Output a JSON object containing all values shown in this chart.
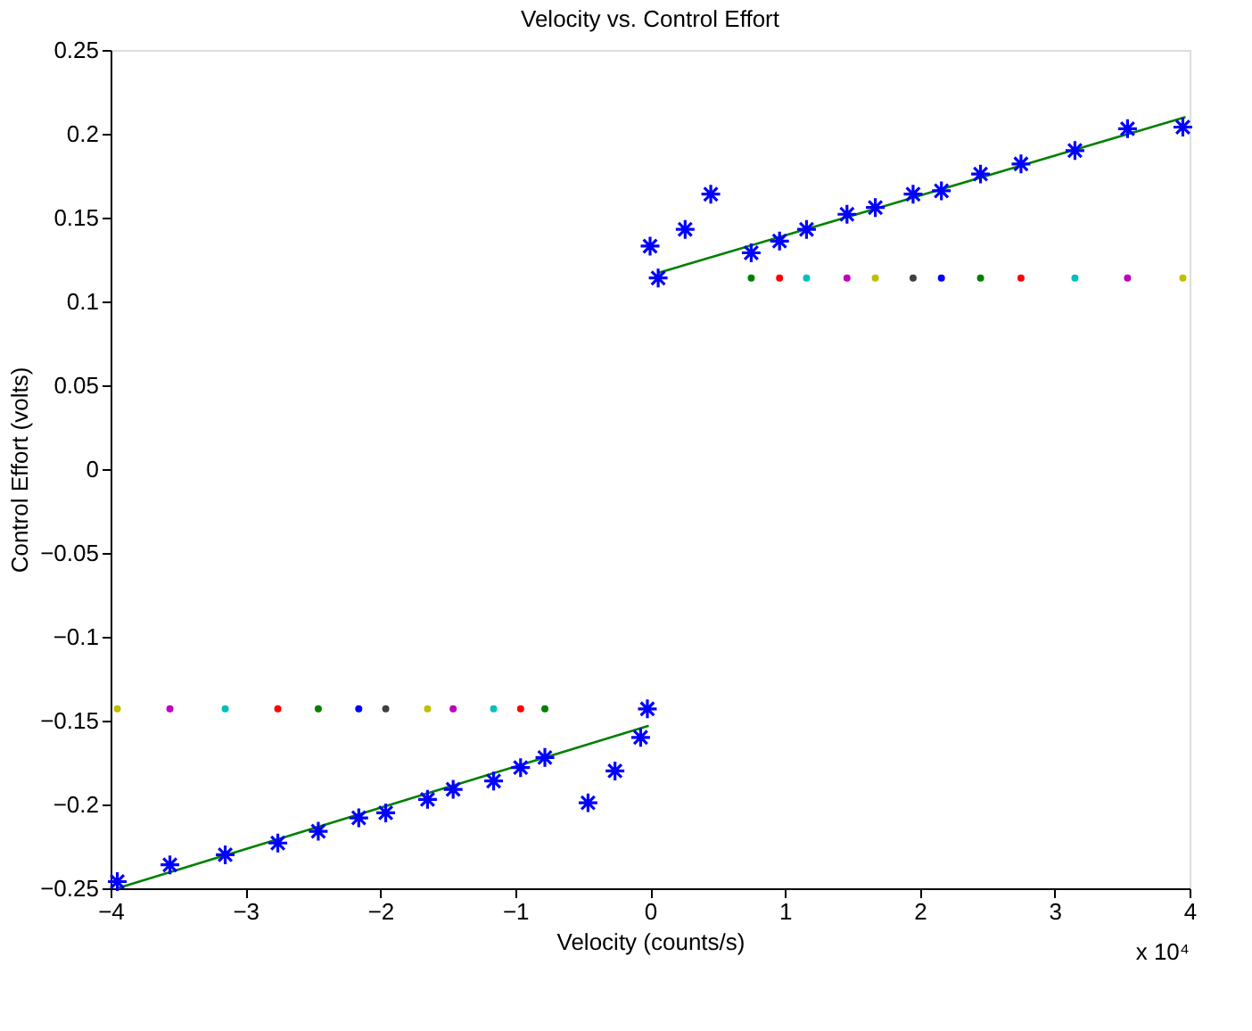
{
  "chart_data": {
    "type": "scatter",
    "title": "Velocity vs. Control Effort",
    "xlabel": "Velocity (counts/s)",
    "ylabel": "Control Effort (volts)",
    "annotations": [
      "x 10⁴"
    ],
    "xlim": [
      -4,
      4
    ],
    "xticks": [
      -4,
      -3,
      -2,
      -1,
      0,
      1,
      2,
      3,
      4
    ],
    "ylim": [
      -0.25,
      0.25
    ],
    "yticks": [
      -0.25,
      -0.2,
      -0.15,
      -0.1,
      -0.05,
      0,
      0.05,
      0.1,
      0.15,
      0.2,
      0.25
    ],
    "grid": false,
    "legend": false,
    "series": [
      {
        "type": "line",
        "color": "#008000",
        "marker": "none",
        "line_style": "solid",
        "x": [
          -3.95,
          -0.01
        ],
        "values": [
          -0.25,
          -0.153
        ]
      },
      {
        "type": "line",
        "color": "#008000",
        "marker": "none",
        "line_style": "solid",
        "x": [
          0.06,
          3.97
        ],
        "values": [
          0.117,
          0.21
        ]
      },
      {
        "marker": "circle",
        "x": [
          -3.95,
          -3.56,
          -3.15,
          -2.76,
          -2.46,
          -2.16,
          -1.96,
          -1.65,
          -1.46,
          -1.16,
          -0.96,
          -0.78
        ],
        "values": [
          -0.143,
          -0.143,
          -0.143,
          -0.143,
          -0.143,
          -0.143,
          -0.143,
          -0.143,
          -0.143,
          -0.143,
          -0.143,
          -0.143
        ],
        "colors": [
          "#bfbf00",
          "#bf00bf",
          "#00bfbf",
          "#ff0000",
          "#008000",
          "#0000ff",
          "#404040",
          "#bfbf00",
          "#bf00bf",
          "#00bfbf",
          "#ff0000",
          "#008000"
        ]
      },
      {
        "marker": "circle",
        "x": [
          0.75,
          0.96,
          1.16,
          1.46,
          1.67,
          1.95,
          2.16,
          2.45,
          2.75,
          3.15,
          3.54,
          3.95
        ],
        "values": [
          0.114,
          0.114,
          0.114,
          0.114,
          0.114,
          0.114,
          0.114,
          0.114,
          0.114,
          0.114,
          0.114,
          0.114
        ],
        "colors": [
          "#008000",
          "#ff0000",
          "#00bfbf",
          "#bf00bf",
          "#bfbf00",
          "#404040",
          "#0000ff",
          "#008000",
          "#ff0000",
          "#00bfbf",
          "#bf00bf",
          "#bfbf00"
        ]
      },
      {
        "marker": "cross",
        "color": "#0000ff",
        "x": [
          -3.95,
          -3.56,
          -3.15,
          -2.76,
          -2.46,
          -2.16,
          -1.96,
          -1.65,
          -1.46,
          -1.16,
          -0.96,
          -0.78,
          -0.46,
          -0.26,
          -0.07,
          -0.02,
          0.0,
          0.06,
          0.26,
          0.45,
          0.75,
          0.96,
          1.16,
          1.46,
          1.67,
          1.95,
          2.16,
          2.45,
          2.75,
          3.15,
          3.54,
          3.95
        ],
        "values": [
          -0.246,
          -0.236,
          -0.23,
          -0.223,
          -0.216,
          -0.208,
          -0.205,
          -0.197,
          -0.191,
          -0.186,
          -0.178,
          -0.172,
          -0.199,
          -0.18,
          -0.16,
          -0.143,
          0.133,
          0.114,
          0.143,
          0.164,
          0.129,
          0.136,
          0.143,
          0.152,
          0.156,
          0.164,
          0.166,
          0.176,
          0.182,
          0.19,
          0.203,
          0.204
        ]
      }
    ]
  }
}
